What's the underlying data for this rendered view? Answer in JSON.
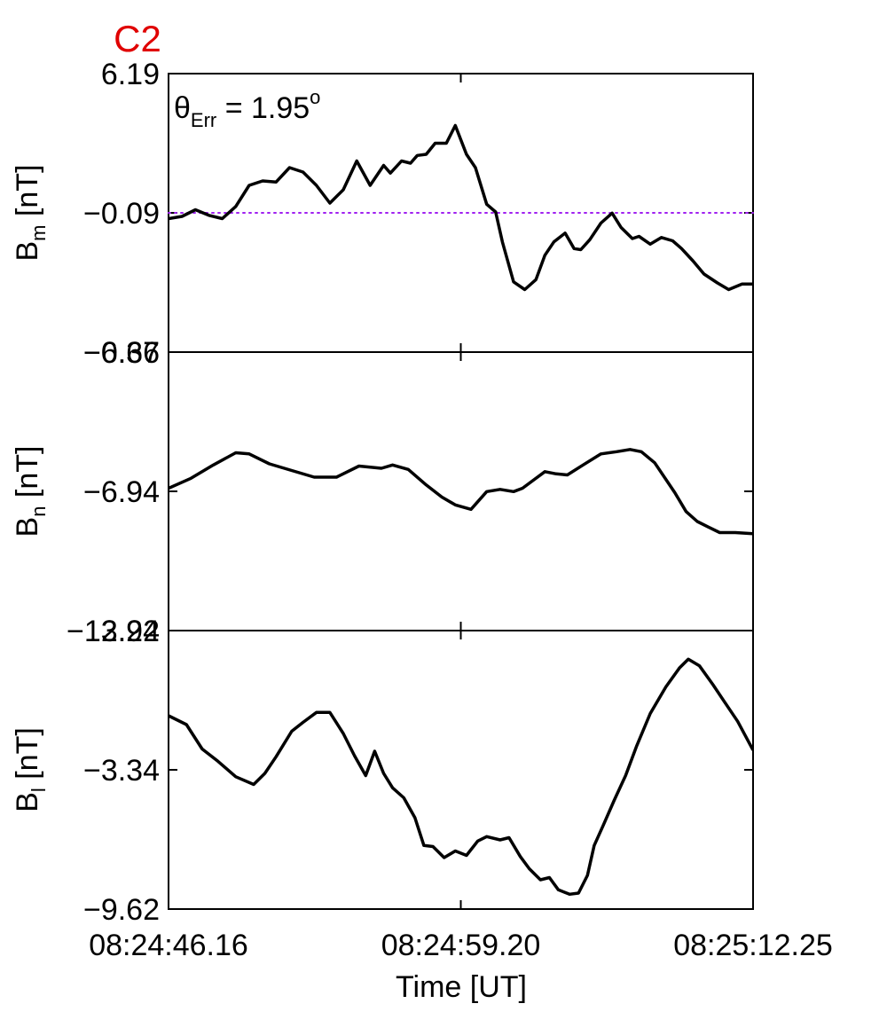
{
  "chart_data": {
    "type": "line",
    "title": "C2",
    "annotation": {
      "prefix": "θ",
      "sub": "Err",
      "text": " =  1.95",
      "sup": "o"
    },
    "xlabel": "Time [UT]",
    "x_tick_labels": [
      "08:24:46.16",
      "08:24:59.20",
      "08:25:12.25"
    ],
    "x_range_s": [
      0,
      26.09
    ],
    "panels": [
      {
        "ylabel": "B",
        "ylabel_sub": "m",
        "ylabel_unit": " [nT]",
        "ylim": [
          -6.37,
          6.19
        ],
        "tick_labels": [
          "6.19",
          "−0.09",
          "−6.37"
        ],
        "reference_line": {
          "y": -0.09,
          "color": "#a020f0",
          "style": "dotted"
        },
        "x": [
          0.0,
          0.6,
          1.2,
          1.8,
          2.4,
          3.0,
          3.6,
          4.2,
          4.8,
          5.4,
          6.0,
          6.6,
          7.2,
          7.8,
          8.4,
          9.0,
          9.6,
          9.9,
          10.4,
          10.8,
          11.1,
          11.5,
          11.9,
          12.4,
          12.8,
          13.3,
          13.7,
          14.2,
          14.6,
          14.9,
          15.4,
          15.9,
          16.4,
          16.8,
          17.2,
          17.7,
          18.1,
          18.4,
          18.8,
          19.3,
          19.8,
          20.2,
          20.7,
          21.0,
          21.5,
          22.0,
          22.5,
          22.9,
          23.4,
          23.9,
          24.5,
          25.0,
          25.6,
          26.09
        ],
        "y": [
          -0.35,
          -0.25,
          0.05,
          -0.2,
          -0.35,
          0.2,
          1.15,
          1.35,
          1.3,
          1.95,
          1.75,
          1.15,
          0.35,
          0.95,
          2.25,
          1.15,
          2.05,
          1.7,
          2.25,
          2.15,
          2.5,
          2.55,
          3.05,
          3.05,
          3.85,
          2.55,
          1.95,
          0.3,
          -0.05,
          -1.4,
          -3.2,
          -3.55,
          -3.1,
          -2.0,
          -1.4,
          -1.0,
          -1.7,
          -1.75,
          -1.3,
          -0.55,
          -0.1,
          -0.75,
          -1.25,
          -1.15,
          -1.5,
          -1.2,
          -1.35,
          -1.7,
          -2.25,
          -2.85,
          -3.25,
          -3.55,
          -3.3,
          -3.3
        ]
      },
      {
        "ylabel": "B",
        "ylabel_sub": "n",
        "ylabel_unit": " [nT]",
        "ylim": [
          -13.22,
          -0.66
        ],
        "tick_labels": [
          "−0.66",
          "−6.94",
          "−13.22"
        ],
        "x": [
          0.0,
          1.0,
          2.0,
          3.0,
          3.6,
          4.5,
          5.5,
          6.5,
          7.5,
          8.5,
          9.5,
          10.0,
          10.7,
          11.5,
          12.2,
          12.8,
          13.5,
          14.2,
          14.8,
          15.4,
          15.8,
          16.2,
          16.8,
          17.3,
          17.8,
          18.5,
          19.3,
          20.0,
          20.6,
          21.1,
          21.7,
          22.2,
          22.6,
          23.1,
          23.6,
          24.1,
          24.6,
          25.3,
          26.09
        ],
        "y": [
          -6.8,
          -6.35,
          -5.75,
          -5.2,
          -5.25,
          -5.7,
          -6.0,
          -6.3,
          -6.3,
          -5.8,
          -5.9,
          -5.75,
          -5.95,
          -6.65,
          -7.2,
          -7.55,
          -7.75,
          -6.95,
          -6.85,
          -6.95,
          -6.8,
          -6.5,
          -6.05,
          -6.15,
          -6.2,
          -5.75,
          -5.25,
          -5.15,
          -5.05,
          -5.15,
          -5.65,
          -6.4,
          -7.0,
          -7.85,
          -8.3,
          -8.55,
          -8.8,
          -8.8,
          -8.85
        ]
      },
      {
        "ylabel": "B",
        "ylabel_sub": "l",
        "ylabel_unit": " [nT]",
        "ylim": [
          -9.62,
          2.94
        ],
        "tick_labels": [
          "2.94",
          "−3.34",
          "−9.62"
        ],
        "x": [
          0.0,
          0.8,
          1.5,
          2.2,
          3.0,
          3.8,
          4.3,
          4.8,
          5.5,
          6.0,
          6.6,
          7.2,
          7.8,
          8.3,
          8.8,
          9.2,
          9.6,
          10.0,
          10.5,
          11.0,
          11.4,
          11.8,
          12.3,
          12.8,
          13.3,
          13.8,
          14.2,
          14.8,
          15.2,
          15.7,
          16.1,
          16.6,
          17.0,
          17.4,
          17.9,
          18.3,
          18.7,
          19.0,
          19.4,
          19.9,
          20.4,
          20.9,
          21.5,
          22.2,
          22.8,
          23.2,
          23.7,
          24.3,
          24.8,
          25.4,
          26.09
        ],
        "y": [
          -0.9,
          -1.3,
          -2.4,
          -2.95,
          -3.65,
          -4.0,
          -3.5,
          -2.75,
          -1.6,
          -1.2,
          -0.75,
          -0.75,
          -1.7,
          -2.7,
          -3.6,
          -2.5,
          -3.5,
          -4.15,
          -4.6,
          -5.5,
          -6.75,
          -6.8,
          -7.3,
          -7.0,
          -7.2,
          -6.55,
          -6.35,
          -6.5,
          -6.4,
          -7.25,
          -7.8,
          -8.3,
          -8.2,
          -8.75,
          -8.95,
          -8.9,
          -8.1,
          -6.75,
          -5.85,
          -4.7,
          -3.6,
          -2.25,
          -0.8,
          0.4,
          1.25,
          1.65,
          1.35,
          0.5,
          -0.25,
          -1.15,
          -2.45
        ]
      }
    ]
  }
}
